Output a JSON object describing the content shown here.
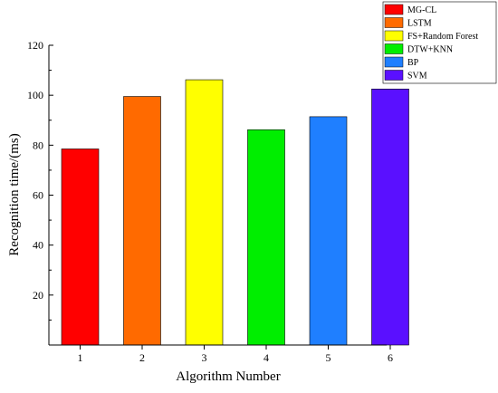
{
  "chart_data": {
    "type": "bar",
    "categories": [
      "1",
      "2",
      "3",
      "4",
      "5",
      "6"
    ],
    "values": [
      78.5,
      99.5,
      106.2,
      86.2,
      91.4,
      102.5
    ],
    "series_names": [
      "MG-CL",
      "LSTM",
      "FS+Random Forest",
      "DTW+KNN",
      "BP",
      "SVM"
    ],
    "colors": [
      "#ff0000",
      "#ff6a00",
      "#ffff00",
      "#00ee00",
      "#1f7fff",
      "#5a10ff"
    ],
    "title": "",
    "xlabel": "Algorithm Number",
    "ylabel": "Recognition time/(ms)",
    "ylim": [
      0,
      120
    ],
    "yticks": [
      "20",
      "40",
      "60",
      "80",
      "100",
      "120"
    ],
    "grid": false,
    "legend_position": "top-right"
  }
}
